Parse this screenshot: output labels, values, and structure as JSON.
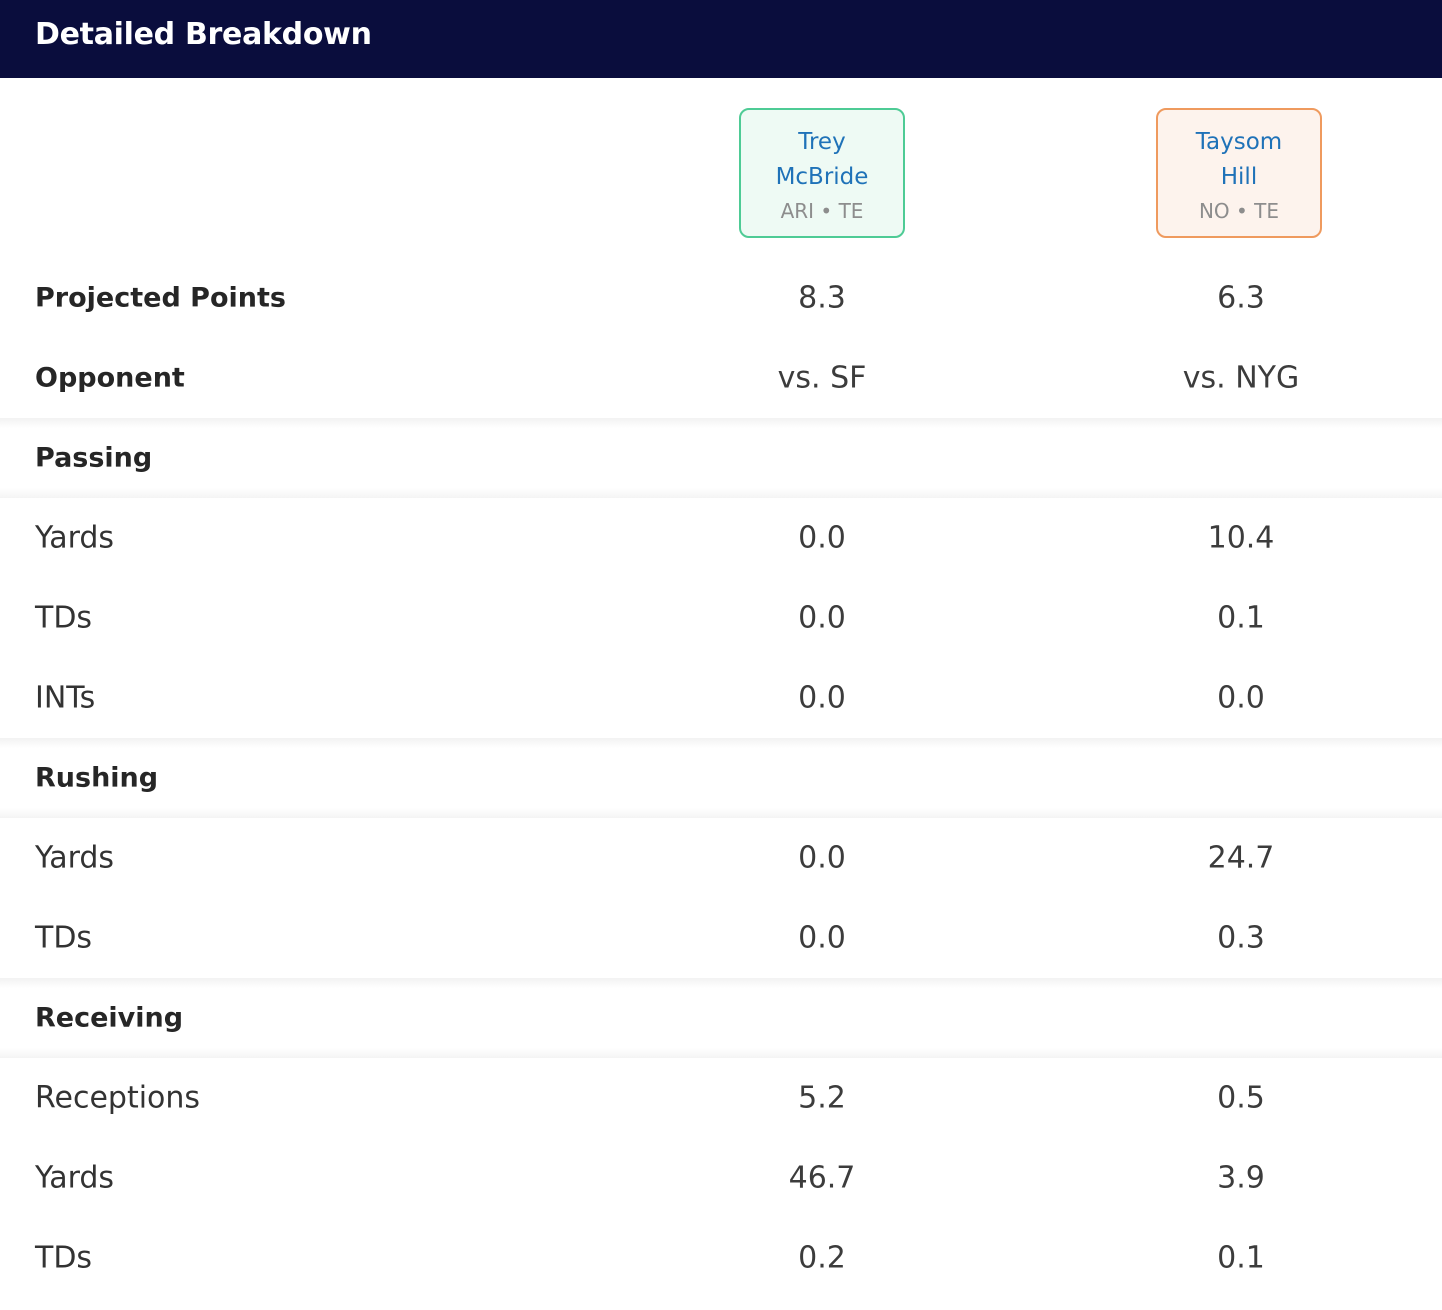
{
  "header": {
    "title": "Detailed Breakdown"
  },
  "players": [
    {
      "first_name": "Trey",
      "last_name": "McBride",
      "meta": "ARI • TE",
      "border_color": "#4ecb95"
    },
    {
      "first_name": "Taysom",
      "last_name": "Hill",
      "meta": "NO • TE",
      "border_color": "#ef9a5e"
    }
  ],
  "summary": {
    "projected_points": {
      "label": "Projected Points",
      "a": "8.3",
      "b": "6.3"
    },
    "opponent": {
      "label": "Opponent",
      "a": "vs. SF",
      "b": "vs. NYG"
    }
  },
  "passing": {
    "title": "Passing",
    "yards": {
      "label": "Yards",
      "a": "0.0",
      "b": "10.4"
    },
    "tds": {
      "label": "TDs",
      "a": "0.0",
      "b": "0.1"
    },
    "ints": {
      "label": "INTs",
      "a": "0.0",
      "b": "0.0"
    }
  },
  "rushing": {
    "title": "Rushing",
    "yards": {
      "label": "Yards",
      "a": "0.0",
      "b": "24.7"
    },
    "tds": {
      "label": "TDs",
      "a": "0.0",
      "b": "0.3"
    }
  },
  "receiving": {
    "title": "Receiving",
    "receptions": {
      "label": "Receptions",
      "a": "5.2",
      "b": "0.5"
    },
    "yards": {
      "label": "Yards",
      "a": "46.7",
      "b": "3.9"
    },
    "tds": {
      "label": "TDs",
      "a": "0.2",
      "b": "0.1"
    }
  },
  "colors": {
    "header_bg": "#0a0d3d",
    "player_name": "#1f72b8"
  }
}
